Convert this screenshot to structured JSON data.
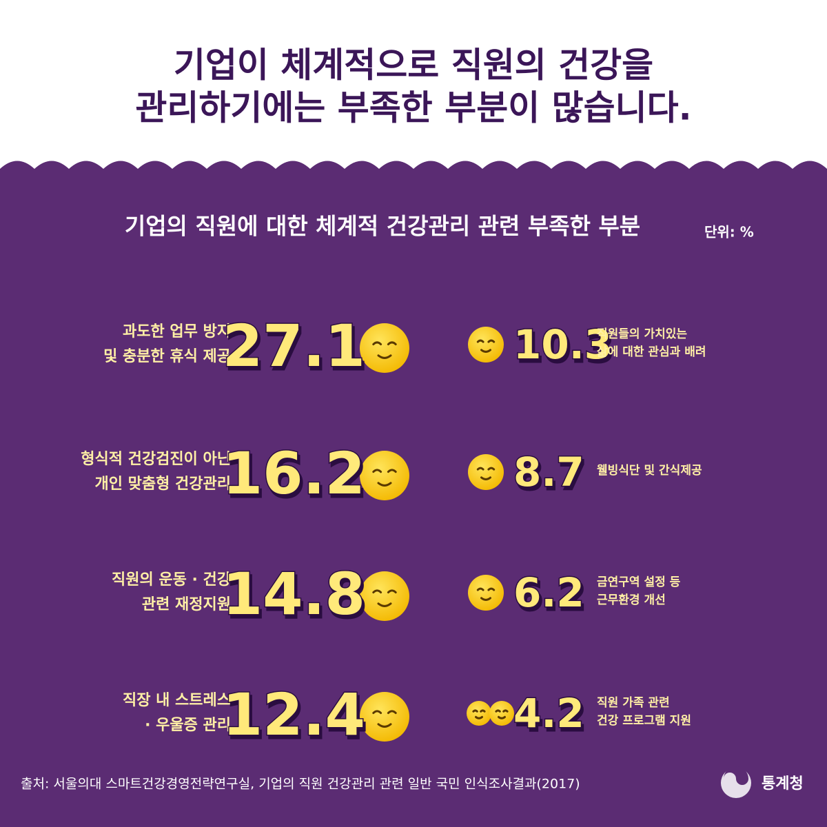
{
  "header": {
    "title": [
      "기업이 체계적으로 직원의 건강을",
      "관리하기에는 부족한 부분이 많습니다."
    ]
  },
  "panel": {
    "subtitle": "기업의 직원에 대한 체계적 건강관리 관련 부족한 부분",
    "unit": "단위: %",
    "left": [
      {
        "label": [
          "과도한 업무 방지",
          "및 충분한 휴식 제공"
        ],
        "value": 27.1
      },
      {
        "label": [
          "형식적 건강검진이 아닌",
          "개인 맞춤형 건강관리"
        ],
        "value": 16.2
      },
      {
        "label": [
          "직원의 운동 · 건강",
          "관련 재정지원"
        ],
        "value": 14.8
      },
      {
        "label": [
          "직장 내 스트레스",
          "· 우울증 관리"
        ],
        "value": 12.4
      }
    ],
    "right": [
      {
        "label": [
          "직원들의 가치있는",
          "삶에 대한 관심과 배려"
        ],
        "value": 10.3
      },
      {
        "label": [
          "웰빙식단 및 간식제공"
        ],
        "value": 8.7
      },
      {
        "label": [
          "금연구역 설정 등",
          "근무환경 개선"
        ],
        "value": 6.2
      },
      {
        "label": [
          "직원 가족 관련",
          "건강 프로그램 지원"
        ],
        "value": 4.2
      }
    ]
  },
  "footer": {
    "source": "출처: 서울의대 스마트건강경영전략연구실, 기업의 직원 건강관리 관련 일반 국민 인식조사결과(2017)",
    "logo": "통계청"
  }
}
